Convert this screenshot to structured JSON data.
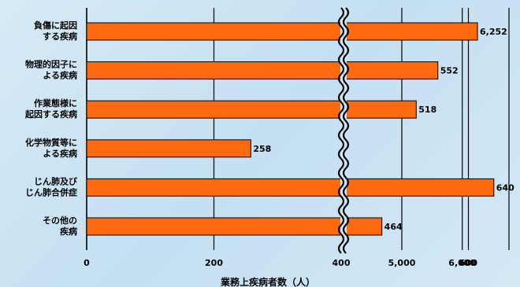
{
  "chart_data": {
    "type": "bar",
    "orientation": "horizontal",
    "categories": [
      [
        "負傷に起因",
        "する疾病"
      ],
      [
        "物理的因子に",
        "よる疾病"
      ],
      [
        "作業態様に",
        "起因する疾病"
      ],
      [
        "化学物質等に",
        "よる疾病"
      ],
      [
        "じん肺及び",
        "じん肺合併症"
      ],
      [
        "その他の",
        "疾病"
      ]
    ],
    "values": [
      6252,
      552,
      518,
      258,
      640,
      464
    ],
    "value_labels": [
      "6,252",
      "552",
      "518",
      "258",
      "640",
      "464"
    ],
    "xticks": [
      0,
      200,
      400,
      600,
      5000,
      6000
    ],
    "xtick_labels": [
      "0",
      "200",
      "400",
      "600",
      "5,000",
      "6,000"
    ],
    "axis_break": true,
    "xlabel": "業務上疾病者数（人）",
    "grid": true,
    "bar_color": "#ff6a10",
    "bar_edge_color": "#000000"
  }
}
